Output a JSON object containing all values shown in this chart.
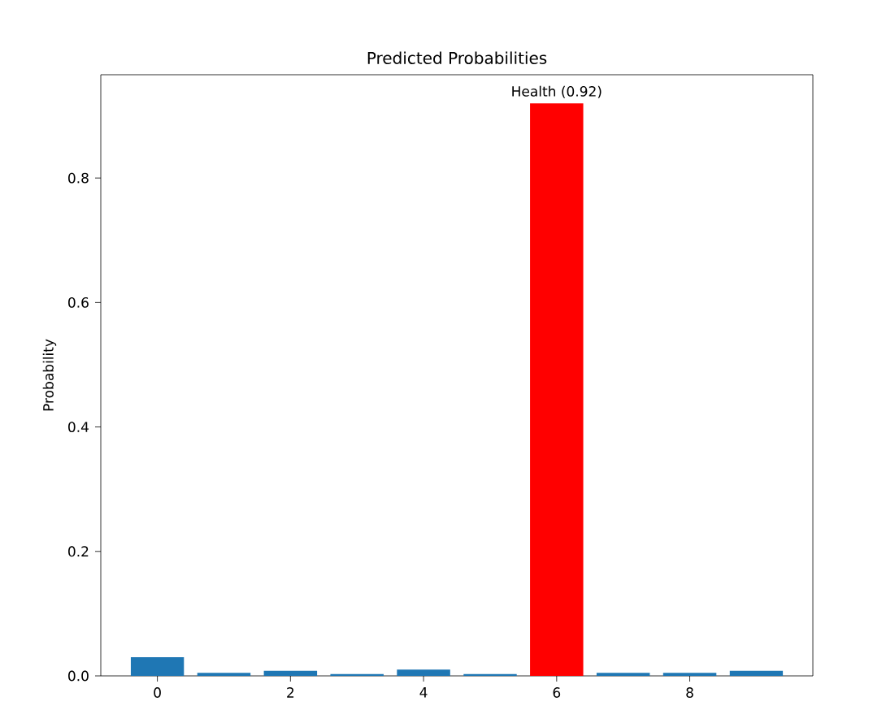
{
  "chart_data": {
    "type": "bar",
    "title": "Predicted Probabilities",
    "ylabel": "Probability",
    "x": [
      0,
      1,
      2,
      3,
      4,
      5,
      6,
      7,
      8,
      9
    ],
    "values": [
      0.03,
      0.005,
      0.008,
      0.003,
      0.01,
      0.003,
      0.92,
      0.005,
      0.005,
      0.008
    ],
    "colors": [
      "#1f77b4",
      "#1f77b4",
      "#1f77b4",
      "#1f77b4",
      "#1f77b4",
      "#1f77b4",
      "#ff0000",
      "#1f77b4",
      "#1f77b4",
      "#1f77b4"
    ],
    "xlim": [
      -0.85,
      9.85
    ],
    "ylim": [
      0,
      0.966
    ],
    "xticks": [
      0,
      2,
      4,
      6,
      8
    ],
    "yticks": [
      {
        "value": 0,
        "label": "0.0"
      },
      {
        "value": 0.2,
        "label": "0.2"
      },
      {
        "value": 0.4,
        "label": "0.4"
      },
      {
        "value": 0.6,
        "label": "0.6"
      },
      {
        "value": 0.8,
        "label": "0.8"
      }
    ],
    "annotations": [
      {
        "text": "Health (0.92)",
        "x": 6,
        "y": 0.92
      }
    ]
  }
}
